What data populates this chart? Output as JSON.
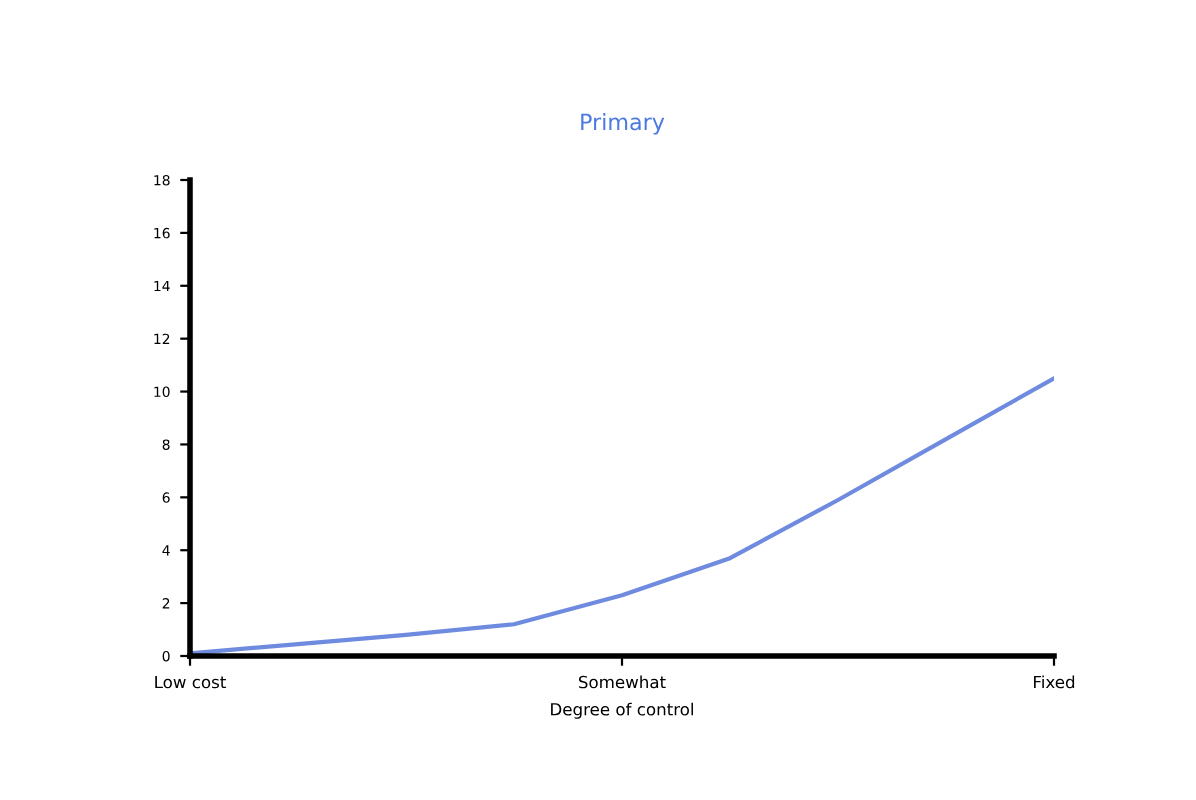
{
  "chart_data": {
    "type": "line",
    "title": "Primary",
    "xlabel": "Degree of control",
    "categories": [
      "Low cost",
      null,
      null,
      null,
      "Somewhat",
      null,
      null,
      null,
      "Fixed"
    ],
    "series": [
      {
        "color": "#6f8be0",
        "values": [
          0.1,
          0.45,
          0.8,
          1.2,
          2.3,
          3.7,
          5.9,
          8.2,
          10.5
        ]
      }
    ],
    "ylim": [
      0,
      18
    ],
    "yticks": [
      0,
      2,
      4,
      6,
      8,
      10,
      12,
      14,
      16,
      18
    ],
    "grid": false,
    "line_style": "solid",
    "marker": "none"
  }
}
